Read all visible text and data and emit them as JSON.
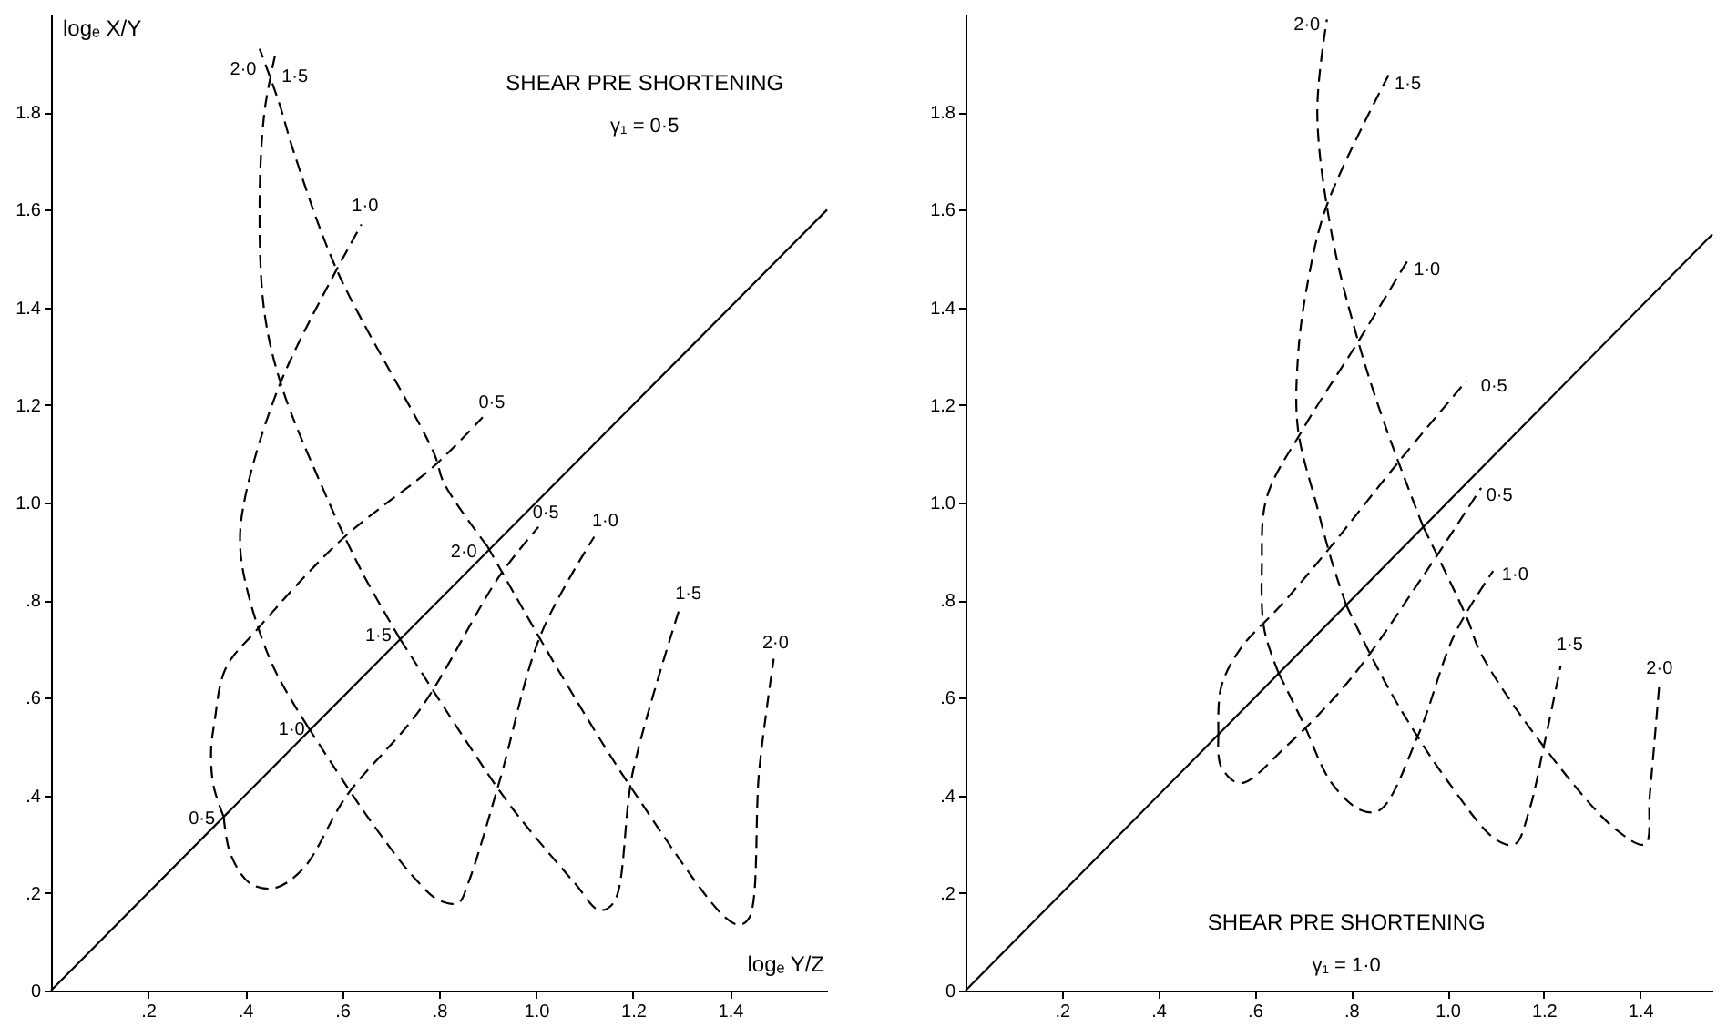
{
  "chart_data": [
    {
      "type": "line",
      "title": "SHEAR PRE SHORTENING",
      "subtitle": "γ₁ = 0·5",
      "xlabel": "logₑ Y/Z",
      "ylabel": "logₑ X/Y",
      "xlim": [
        0,
        1.6
      ],
      "ylim": [
        0,
        2.0
      ],
      "xticks": [
        {
          "value": 0.2,
          "label": ".2"
        },
        {
          "value": 0.4,
          "label": ".4"
        },
        {
          "value": 0.6,
          "label": ".6"
        },
        {
          "value": 0.8,
          "label": ".8"
        },
        {
          "value": 1.0,
          "label": "1.0"
        },
        {
          "value": 1.2,
          "label": "1.2"
        },
        {
          "value": 1.4,
          "label": "1.4"
        }
      ],
      "yticks": [
        0,
        {
          "value": 0.2,
          "label": ".2"
        },
        {
          "value": 0.4,
          "label": ".4"
        },
        {
          "value": 0.6,
          "label": ".6"
        },
        {
          "value": 0.8,
          "label": ".8"
        },
        {
          "value": 1.0,
          "label": "1.0"
        },
        {
          "value": 1.2,
          "label": "1.2"
        },
        {
          "value": 1.4,
          "label": "1.4"
        },
        {
          "value": 1.6,
          "label": "1.6"
        },
        {
          "value": 1.8,
          "label": "1.8"
        }
      ],
      "series": [
        {
          "color": "#000000",
          "line_style": "solid",
          "x": [
            0,
            1.6
          ],
          "values": [
            0,
            1.6
          ]
        },
        {
          "color": "#000000",
          "line_style": "dashed",
          "x": [
            0.356,
            0.335,
            0.33,
            0.337,
            0.36,
            0.425,
            0.6,
            0.79,
            0.89
          ],
          "values": [
            0.356,
            0.42,
            0.49,
            0.55,
            0.66,
            0.74,
            0.925,
            1.075,
            1.175
          ]
        },
        {
          "color": "#000000",
          "line_style": "dashed",
          "x": [
            0.356,
            0.37,
            0.41,
            0.46,
            0.52,
            0.61,
            0.76,
            0.925,
            1.005
          ],
          "values": [
            0.356,
            0.28,
            0.22,
            0.21,
            0.25,
            0.4,
            0.575,
            0.85,
            0.95
          ]
        },
        {
          "color": "#000000",
          "line_style": "dashed",
          "x": [
            0.53,
            0.46,
            0.41,
            0.39,
            0.4,
            0.475,
            0.64
          ],
          "values": [
            0.54,
            0.66,
            0.8,
            0.91,
            1.01,
            1.25,
            1.57
          ]
        },
        {
          "color": "#000000",
          "line_style": "dashed",
          "x": [
            0.53,
            0.65,
            0.75,
            0.8,
            0.84,
            0.86,
            0.925,
            1.01,
            1.12
          ],
          "values": [
            0.54,
            0.36,
            0.23,
            0.185,
            0.18,
            0.22,
            0.43,
            0.73,
            0.93
          ]
        },
        {
          "color": "#000000",
          "line_style": "dashed",
          "x": [
            0.72,
            0.64,
            0.56,
            0.475,
            0.44,
            0.43,
            0.44,
            0.465
          ],
          "values": [
            0.72,
            0.86,
            1.03,
            1.24,
            1.39,
            1.6,
            1.8,
            1.93
          ]
        },
        {
          "color": "#000000",
          "line_style": "dashed",
          "x": [
            0.72,
            0.86,
            0.95,
            1.08,
            1.13,
            1.16,
            1.2,
            1.295
          ],
          "values": [
            0.72,
            0.505,
            0.375,
            0.22,
            0.165,
            0.18,
            0.45,
            0.78
          ]
        },
        {
          "color": "#000000",
          "line_style": "dashed",
          "x": [
            0.9,
            0.81,
            0.79,
            0.59,
            0.5,
            0.47,
            0.43
          ],
          "values": [
            0.91,
            1.04,
            1.1,
            1.475,
            1.72,
            1.82,
            1.93
          ]
        },
        {
          "color": "#000000",
          "line_style": "dashed",
          "x": [
            0.9,
            1.05,
            1.2,
            1.39,
            1.42,
            1.44,
            1.46,
            1.49
          ],
          "values": [
            0.91,
            0.65,
            0.41,
            0.15,
            0.135,
            0.15,
            0.45,
            0.68
          ]
        }
      ],
      "annotations": [
        {
          "text": "2·0",
          "x": 0.43,
          "y": 1.93
        },
        {
          "text": "1·5",
          "x": 0.465,
          "y": 1.93
        },
        {
          "text": "1·0",
          "x": 0.64,
          "y": 1.57
        },
        {
          "text": "0·5",
          "x": 0.89,
          "y": 1.175
        },
        {
          "text": "0·5",
          "x": 1.005,
          "y": 0.95
        },
        {
          "text": "1·0",
          "x": 1.12,
          "y": 0.93
        },
        {
          "text": "1·5",
          "x": 1.295,
          "y": 0.78
        },
        {
          "text": "2·0",
          "x": 1.49,
          "y": 0.68
        },
        {
          "text": "0·5",
          "x": 0.356,
          "y": 0.356
        },
        {
          "text": "1·0",
          "x": 0.53,
          "y": 0.54
        },
        {
          "text": "1·5",
          "x": 0.72,
          "y": 0.72
        },
        {
          "text": "2·0",
          "x": 0.9,
          "y": 0.91
        }
      ]
    },
    {
      "type": "line",
      "title": "SHEAR PRE SHORTENING",
      "subtitle": "γ₁ = 1·0",
      "xlim": [
        0,
        1.55
      ],
      "ylim": [
        0,
        2.0
      ],
      "xticks": [
        {
          "value": 0.2,
          "label": ".2"
        },
        {
          "value": 0.4,
          "label": ".4"
        },
        {
          "value": 0.6,
          "label": ".6"
        },
        {
          "value": 0.8,
          "label": ".8"
        },
        {
          "value": 1.0,
          "label": "1.0"
        },
        {
          "value": 1.2,
          "label": "1.2"
        },
        {
          "value": 1.4,
          "label": "1.4"
        }
      ],
      "yticks": [
        0,
        {
          "value": 0.2,
          "label": ".2"
        },
        {
          "value": 0.4,
          "label": ".4"
        },
        {
          "value": 0.6,
          "label": ".6"
        },
        {
          "value": 0.8,
          "label": ".8"
        },
        {
          "value": 1.0,
          "label": "1.0"
        },
        {
          "value": 1.2,
          "label": "1.2"
        },
        {
          "value": 1.4,
          "label": "1.4"
        },
        {
          "value": 1.6,
          "label": "1.6"
        },
        {
          "value": 1.8,
          "label": "1.8"
        }
      ],
      "series": [
        {
          "color": "#000000",
          "line_style": "solid",
          "x": [
            0,
            1.55
          ],
          "values": [
            0,
            1.55
          ]
        },
        {
          "color": "#000000",
          "line_style": "dashed",
          "x": [
            0.525,
            0.53,
            0.57,
            0.655,
            0.75,
            0.9,
            1.04
          ],
          "values": [
            0.525,
            0.62,
            0.7,
            0.79,
            0.9,
            1.085,
            1.25
          ]
        },
        {
          "color": "#000000",
          "line_style": "dashed",
          "x": [
            0.525,
            0.53,
            0.57,
            0.665,
            0.8,
            0.95,
            1.07
          ],
          "values": [
            0.525,
            0.46,
            0.425,
            0.5,
            0.64,
            0.85,
            1.03
          ]
        },
        {
          "color": "#000000",
          "line_style": "dashed",
          "x": [
            0.65,
            0.62,
            0.615,
            0.625,
            0.7,
            0.815,
            0.92
          ],
          "values": [
            0.65,
            0.74,
            0.87,
            1.01,
            1.15,
            1.33,
            1.5
          ]
        },
        {
          "color": "#000000",
          "line_style": "dashed",
          "x": [
            0.65,
            0.7,
            0.76,
            0.82,
            0.86,
            0.94,
            1.015,
            1.095
          ],
          "values": [
            0.65,
            0.55,
            0.425,
            0.37,
            0.37,
            0.525,
            0.73,
            0.86
          ]
        },
        {
          "color": "#000000",
          "line_style": "dashed",
          "x": [
            0.79,
            0.76,
            0.73,
            0.69,
            0.69,
            0.71,
            0.75,
            0.88
          ],
          "values": [
            0.79,
            0.88,
            0.99,
            1.15,
            1.3,
            1.45,
            1.61,
            1.88
          ]
        },
        {
          "color": "#000000",
          "line_style": "dashed",
          "x": [
            0.79,
            0.85,
            0.91,
            1.0,
            1.1,
            1.14,
            1.17,
            1.2,
            1.235
          ],
          "values": [
            0.79,
            0.67,
            0.565,
            0.43,
            0.31,
            0.3,
            0.37,
            0.5,
            0.665
          ]
        },
        {
          "color": "#000000",
          "line_style": "dashed",
          "x": [
            0.95,
            0.87,
            0.815,
            0.76,
            0.73,
            0.75
          ],
          "values": [
            0.95,
            1.16,
            1.33,
            1.55,
            1.8,
            1.99
          ]
        },
        {
          "color": "#000000",
          "line_style": "dashed",
          "x": [
            0.95,
            1.04,
            1.07,
            1.2,
            1.35,
            1.41,
            1.42,
            1.44
          ],
          "values": [
            0.95,
            0.765,
            0.69,
            0.5,
            0.33,
            0.3,
            0.4,
            0.63
          ]
        }
      ],
      "annotations": [
        {
          "text": "2·0",
          "x": 0.75,
          "y": 1.99
        },
        {
          "text": "1·5",
          "x": 0.88,
          "y": 1.88
        },
        {
          "text": "1·0",
          "x": 0.92,
          "y": 1.5
        },
        {
          "text": "0·5",
          "x": 1.04,
          "y": 1.25
        },
        {
          "text": "0·5",
          "x": 1.07,
          "y": 1.03
        },
        {
          "text": "1·0",
          "x": 1.095,
          "y": 0.86
        },
        {
          "text": "1·5",
          "x": 1.235,
          "y": 0.665
        },
        {
          "text": "2·0",
          "x": 1.44,
          "y": 0.63
        }
      ]
    }
  ]
}
